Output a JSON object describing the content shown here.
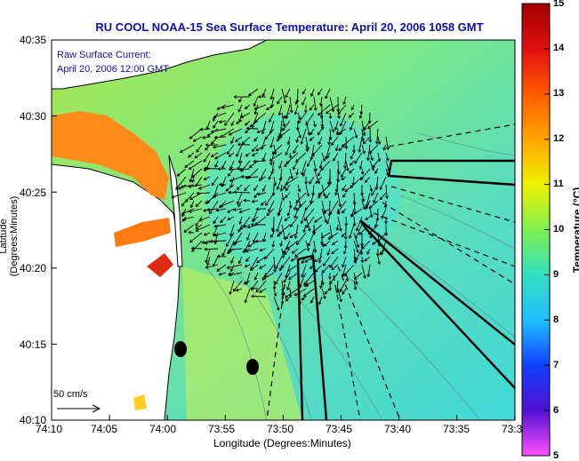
{
  "title": "RU COOL  NOAA-15  Sea Surface Temperature:  April 20, 2006 1058 GMT",
  "legend": {
    "line1": "Raw Surface Current:",
    "line2": "April 20, 2006 12:00 GMT"
  },
  "scale_label": "50 cm/s",
  "x_axis": {
    "label": "Longitude (Degrees:Minutes)",
    "ticks": [
      "74:10",
      "74:05",
      "74:00",
      "73:55",
      "73:50",
      "73:45",
      "73:40",
      "73:35",
      "73:3"
    ]
  },
  "y_axis": {
    "label": "Latitude (Degrees:Minutes)",
    "ticks": [
      "40:35",
      "40:30",
      "40:25",
      "40:20",
      "40:15",
      "40:10"
    ]
  },
  "colorbar": {
    "label": "Temperature (°C)",
    "ticks": [
      "15",
      "14",
      "13",
      "12",
      "11",
      "10",
      "9",
      "8",
      "7",
      "6",
      "5"
    ],
    "colors": [
      "#b00000",
      "#e02000",
      "#ff6000",
      "#ffb000",
      "#ffff00",
      "#a0f040",
      "#40e8b0",
      "#30d0f0",
      "#1080ff",
      "#1020ff",
      "#8000c0",
      "#ff40ff"
    ]
  },
  "colors": {
    "sea": "#6ee0b0",
    "warm_coast": "#ff8c1a",
    "land": "#ffffff",
    "title": "#1010b0"
  }
}
